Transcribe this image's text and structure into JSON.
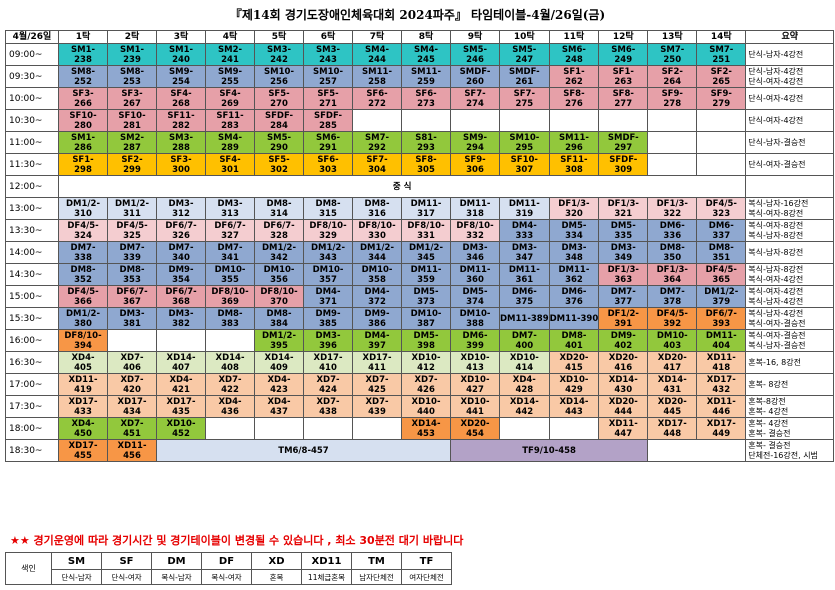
{
  "title": "『제14회 경기도장애인체육대회 2024파주』 타임테이블-4월/26일(금)",
  "header": {
    "date": "4월/26일",
    "tables": [
      "1탁",
      "2탁",
      "3탁",
      "4탁",
      "5탁",
      "6탁",
      "7탁",
      "8탁",
      "9탁",
      "10탁",
      "11탁",
      "12탁",
      "13탁",
      "14탁"
    ],
    "notes": "요약"
  },
  "rows": [
    {
      "time": "09:00~",
      "cells": [
        [
          "SM1-\n238",
          "cyan"
        ],
        [
          "SM1-\n239",
          "cyan"
        ],
        [
          "SM1-\n240",
          "cyan"
        ],
        [
          "SM2-\n241",
          "cyan"
        ],
        [
          "SM3-\n242",
          "cyan"
        ],
        [
          "SM3-\n243",
          "cyan"
        ],
        [
          "SM4-\n244",
          "cyan"
        ],
        [
          "SM4-\n245",
          "cyan"
        ],
        [
          "SM5-\n246",
          "cyan"
        ],
        [
          "SM5-\n247",
          "cyan"
        ],
        [
          "SM6-\n248",
          "cyan"
        ],
        [
          "SM6-\n249",
          "cyan"
        ],
        [
          "SM7-\n250",
          "cyan"
        ],
        [
          "SM7-\n251",
          "cyan"
        ]
      ],
      "note": "단식-남자-4강전"
    },
    {
      "time": "09:30~",
      "cells": [
        [
          "SM8-\n252",
          "blue"
        ],
        [
          "SM8-\n253",
          "blue"
        ],
        [
          "SM9-\n254",
          "blue"
        ],
        [
          "SM9-\n255",
          "blue"
        ],
        [
          "SM10-\n256",
          "blue"
        ],
        [
          "SM10-\n257",
          "blue"
        ],
        [
          "SM11-\n258",
          "blue"
        ],
        [
          "SM11-\n259",
          "blue"
        ],
        [
          "SMDF-\n260",
          "blue"
        ],
        [
          "SMDF-\n261",
          "blue"
        ],
        [
          "SF1-\n262",
          "pink"
        ],
        [
          "SF1-\n263",
          "pink"
        ],
        [
          "SF2-\n264",
          "pink"
        ],
        [
          "SF2-\n265",
          "pink"
        ]
      ],
      "note": "단식-남자-4강전\n단식-여자-4강전"
    },
    {
      "time": "10:00~",
      "cells": [
        [
          "SF3-\n266",
          "pink"
        ],
        [
          "SF3-\n267",
          "pink"
        ],
        [
          "SF4-\n268",
          "pink"
        ],
        [
          "SF4-\n269",
          "pink"
        ],
        [
          "SF5-\n270",
          "pink"
        ],
        [
          "SF5-\n271",
          "pink"
        ],
        [
          "SF6-\n272",
          "pink"
        ],
        [
          "SF6-\n273",
          "pink"
        ],
        [
          "SF7-\n274",
          "pink"
        ],
        [
          "SF7-\n275",
          "pink"
        ],
        [
          "SF8-\n276",
          "pink"
        ],
        [
          "SF8-\n277",
          "pink"
        ],
        [
          "SF9-\n278",
          "pink"
        ],
        [
          "SF9-\n279",
          "pink"
        ]
      ],
      "note": "단식-여자-4강전"
    },
    {
      "time": "10:30~",
      "cells": [
        [
          "SF10-\n280",
          "pink"
        ],
        [
          "SF10-\n281",
          "pink"
        ],
        [
          "SF11-\n282",
          "pink"
        ],
        [
          "SF11-\n283",
          "pink"
        ],
        [
          "SFDF-\n284",
          "pink"
        ],
        [
          "SFDF-\n285",
          "pink"
        ],
        [
          "",
          "white"
        ],
        [
          "",
          "white"
        ],
        [
          "",
          "white"
        ],
        [
          "",
          "white"
        ],
        [
          "",
          "white"
        ],
        [
          "",
          "white"
        ],
        [
          "",
          "white"
        ],
        [
          "",
          "white"
        ]
      ],
      "note": "단식-여자-4강전"
    },
    {
      "time": "11:00~",
      "cells": [
        [
          "SM1-\n286",
          "green"
        ],
        [
          "SM2-\n287",
          "green"
        ],
        [
          "SM3-\n288",
          "green"
        ],
        [
          "SM4-\n289",
          "green"
        ],
        [
          "SM5-\n290",
          "green"
        ],
        [
          "SM6-\n291",
          "green"
        ],
        [
          "SM7-\n292",
          "green"
        ],
        [
          "S81-\n293",
          "green"
        ],
        [
          "SM9-\n294",
          "green"
        ],
        [
          "SM10-\n295",
          "green"
        ],
        [
          "SM11-\n296",
          "green"
        ],
        [
          "SMDF-\n297",
          "green"
        ],
        [
          "",
          "white"
        ],
        [
          "",
          "white"
        ]
      ],
      "note": "단식-남자-결승전"
    },
    {
      "time": "11:30~",
      "cells": [
        [
          "SF1-\n298",
          "yellow"
        ],
        [
          "SF2-\n299",
          "yellow"
        ],
        [
          "SF3-\n300",
          "yellow"
        ],
        [
          "SF4-\n301",
          "yellow"
        ],
        [
          "SF5-\n302",
          "yellow"
        ],
        [
          "SF6-\n303",
          "yellow"
        ],
        [
          "SF7-\n304",
          "yellow"
        ],
        [
          "SF8-\n305",
          "yellow"
        ],
        [
          "SF9-\n306",
          "yellow"
        ],
        [
          "SF10-\n307",
          "yellow"
        ],
        [
          "SF11-\n308",
          "yellow"
        ],
        [
          "SFDF-\n309",
          "yellow"
        ],
        [
          "",
          "white"
        ],
        [
          "",
          "white"
        ]
      ],
      "note": "단식-여자-결승전"
    },
    {
      "time": "12:00~",
      "lunch": "중          식",
      "note": ""
    },
    {
      "time": "13:00~",
      "cells": [
        [
          "DM1/2-\n310",
          "lblue"
        ],
        [
          "DM1/2-\n311",
          "lblue"
        ],
        [
          "DM3-\n312",
          "lblue"
        ],
        [
          "DM3-\n313",
          "lblue"
        ],
        [
          "DM8-\n314",
          "lblue"
        ],
        [
          "DM8-\n315",
          "lblue"
        ],
        [
          "DM8-\n316",
          "lblue"
        ],
        [
          "DM11-\n317",
          "lblue"
        ],
        [
          "DM11-\n318",
          "lblue"
        ],
        [
          "DM11-\n319",
          "lblue"
        ],
        [
          "DF1/3-\n320",
          "lpink"
        ],
        [
          "DF1/3-\n321",
          "lpink"
        ],
        [
          "DF1/3-\n322",
          "lpink"
        ],
        [
          "DF4/5-\n323",
          "lpink"
        ]
      ],
      "note": "복식-남자-16강전\n복식-여자-8강전"
    },
    {
      "time": "13:30~",
      "cells": [
        [
          "DF4/5-\n324",
          "lpink"
        ],
        [
          "DF4/5-\n325",
          "lpink"
        ],
        [
          "DF6/7-\n326",
          "lpink"
        ],
        [
          "DF6/7-\n327",
          "lpink"
        ],
        [
          "DF6/7-\n328",
          "lpink"
        ],
        [
          "DF8/10-\n329",
          "lpink"
        ],
        [
          "DF8/10-\n330",
          "lpink"
        ],
        [
          "DF8/10-\n331",
          "lpink"
        ],
        [
          "DF8/10-\n332",
          "lpink"
        ],
        [
          "DM4-\n333",
          "blue"
        ],
        [
          "DM5-\n334",
          "blue"
        ],
        [
          "DM5-\n335",
          "blue"
        ],
        [
          "DM6-\n336",
          "blue"
        ],
        [
          "DM6-\n337",
          "blue"
        ]
      ],
      "note": "복식-여자-8강전\n복식-남자-8강전"
    },
    {
      "time": "14:00~",
      "cells": [
        [
          "DM7-\n338",
          "blue"
        ],
        [
          "DM7-\n339",
          "blue"
        ],
        [
          "DM7-\n340",
          "blue"
        ],
        [
          "DM7-\n341",
          "blue"
        ],
        [
          "DM1/2-\n342",
          "blue"
        ],
        [
          "DM1/2-\n343",
          "blue"
        ],
        [
          "DM1/2-\n344",
          "blue"
        ],
        [
          "DM1/2-\n345",
          "blue"
        ],
        [
          "DM3-\n346",
          "blue"
        ],
        [
          "DM3-\n347",
          "blue"
        ],
        [
          "DM3-\n348",
          "blue"
        ],
        [
          "DM3-\n349",
          "blue"
        ],
        [
          "DM8-\n350",
          "blue"
        ],
        [
          "DM8-\n351",
          "blue"
        ]
      ],
      "note": "복식-남자-8강전"
    },
    {
      "time": "14:30~",
      "cells": [
        [
          "DM8-\n352",
          "blue"
        ],
        [
          "DM8-\n353",
          "blue"
        ],
        [
          "DM9-\n354",
          "blue"
        ],
        [
          "DM10-\n355",
          "blue"
        ],
        [
          "DM10-\n356",
          "blue"
        ],
        [
          "DM10-\n357",
          "blue"
        ],
        [
          "DM10-\n358",
          "blue"
        ],
        [
          "DM11-\n359",
          "blue"
        ],
        [
          "DM11-\n360",
          "blue"
        ],
        [
          "DM11-\n361",
          "blue"
        ],
        [
          "DM11-\n362",
          "blue"
        ],
        [
          "DF1/3-\n363",
          "pink"
        ],
        [
          "DF1/3-\n364",
          "pink"
        ],
        [
          "DF4/5-\n365",
          "pink"
        ]
      ],
      "note": "복식-남자-8강전\n복식-여자-4강전"
    },
    {
      "time": "15:00~",
      "cells": [
        [
          "DF4/5-\n366",
          "pink"
        ],
        [
          "DF6/7-\n367",
          "pink"
        ],
        [
          "DF6/7-\n368",
          "pink"
        ],
        [
          "DF8/10-\n369",
          "pink"
        ],
        [
          "DF8/10-\n370",
          "pink"
        ],
        [
          "DM4-\n371",
          "blue"
        ],
        [
          "DM4-\n372",
          "blue"
        ],
        [
          "DM5-\n373",
          "blue"
        ],
        [
          "DM5-\n374",
          "blue"
        ],
        [
          "DM6-\n375",
          "blue"
        ],
        [
          "DM6-\n376",
          "blue"
        ],
        [
          "DM7-\n377",
          "blue"
        ],
        [
          "DM7-\n378",
          "blue"
        ],
        [
          "DM1/2-\n379",
          "blue"
        ]
      ],
      "note": "복식-여자-4강전\n복식-남자-4강전"
    },
    {
      "time": "15:30~",
      "cells": [
        [
          "DM1/2-\n380",
          "blue"
        ],
        [
          "DM3-\n381",
          "blue"
        ],
        [
          "DM3-\n382",
          "blue"
        ],
        [
          "DM8-\n383",
          "blue"
        ],
        [
          "DM8-\n384",
          "blue"
        ],
        [
          "DM9-\n385",
          "blue"
        ],
        [
          "DM9-\n386",
          "blue"
        ],
        [
          "DM10-\n387",
          "blue"
        ],
        [
          "DM10-\n388",
          "blue"
        ],
        [
          "DM11-389",
          "blue"
        ],
        [
          "DM11-390",
          "blue"
        ],
        [
          "DF1/2-\n391",
          "orange"
        ],
        [
          "DF4/5-\n392",
          "orange"
        ],
        [
          "DF6/7-\n393",
          "orange"
        ]
      ],
      "note": "복식-남자-4강전\n복식-여자-결승전"
    },
    {
      "time": "16:00~",
      "cells": [
        [
          "DF8/10-\n394",
          "orange"
        ],
        [
          "",
          "white"
        ],
        [
          "",
          "white"
        ],
        [
          "",
          "white"
        ],
        [
          "DM1/2-\n395",
          "green"
        ],
        [
          "DM3-\n396",
          "green"
        ],
        [
          "DM4-\n397",
          "green"
        ],
        [
          "DM5-\n398",
          "green"
        ],
        [
          "DM6-\n399",
          "green"
        ],
        [
          "DM7-\n400",
          "green"
        ],
        [
          "DM8-\n401",
          "green"
        ],
        [
          "DM9-\n402",
          "green"
        ],
        [
          "DM10-\n403",
          "green"
        ],
        [
          "DM11-\n404",
          "green"
        ]
      ],
      "note": "복식-여자-결승전\n복식-남자-결승전"
    },
    {
      "time": "16:30~",
      "cells": [
        [
          "XD4-\n405",
          "lgreen"
        ],
        [
          "XD7-\n406",
          "lgreen"
        ],
        [
          "XD14-\n407",
          "lgreen"
        ],
        [
          "XD14-\n408",
          "lgreen"
        ],
        [
          "XD14-\n409",
          "lgreen"
        ],
        [
          "XD17-\n410",
          "lgreen"
        ],
        [
          "XD17-\n411",
          "lgreen"
        ],
        [
          "XD10-\n412",
          "lgreen"
        ],
        [
          "XD10-\n413",
          "lgreen"
        ],
        [
          "XD10-\n414",
          "lgreen"
        ],
        [
          "XD20-\n415",
          "lorange"
        ],
        [
          "XD20-\n416",
          "lorange"
        ],
        [
          "XD20-\n417",
          "lorange"
        ],
        [
          "XD11-\n418",
          "lorange"
        ]
      ],
      "note": "혼복-16, 8강전"
    },
    {
      "time": "17:00~",
      "cells": [
        [
          "XD11-\n419",
          "lorange"
        ],
        [
          "XD7-\n420",
          "lorange"
        ],
        [
          "XD4-\n421",
          "lorange"
        ],
        [
          "XD7-\n422",
          "lorange"
        ],
        [
          "XD4-\n423",
          "lorange"
        ],
        [
          "XD7-\n424",
          "lorange"
        ],
        [
          "XD7-\n425",
          "lorange"
        ],
        [
          "XD7-\n426",
          "lorange"
        ],
        [
          "XD10-\n427",
          "lorange"
        ],
        [
          "XD4-\n428",
          "lorange"
        ],
        [
          "XD10-\n429",
          "lorange"
        ],
        [
          "XD14-\n430",
          "lorange"
        ],
        [
          "XD14-\n431",
          "lorange"
        ],
        [
          "XD17-\n432",
          "lorange"
        ]
      ],
      "note": "혼복- 8강전"
    },
    {
      "time": "17:30~",
      "cells": [
        [
          "XD17-\n433",
          "lorange"
        ],
        [
          "XD17-\n434",
          "lorange"
        ],
        [
          "XD17-\n435",
          "lorange"
        ],
        [
          "XD4-\n436",
          "lorange"
        ],
        [
          "XD4-\n437",
          "lorange"
        ],
        [
          "XD7-\n438",
          "lorange"
        ],
        [
          "XD7-\n439",
          "lorange"
        ],
        [
          "XD10-\n440",
          "lorange"
        ],
        [
          "XD10-\n441",
          "lorange"
        ],
        [
          "XD14-\n442",
          "lorange"
        ],
        [
          "XD14-\n443",
          "lorange"
        ],
        [
          "XD20-\n444",
          "lorange"
        ],
        [
          "XD20-\n445",
          "lorange"
        ],
        [
          "XD11-\n446",
          "lorange"
        ]
      ],
      "note": "혼복-8강전\n혼복- 4강전"
    },
    {
      "time": "18:00~",
      "cells": [
        [
          "XD4-\n450",
          "green"
        ],
        [
          "XD7-\n451",
          "green"
        ],
        [
          "XD10-\n452",
          "green"
        ],
        [
          "",
          "white"
        ],
        [
          "",
          "white"
        ],
        [
          "",
          "white"
        ],
        [
          "",
          "white"
        ],
        [
          "XD14-\n453",
          "orange"
        ],
        [
          "XD20-\n454",
          "orange"
        ],
        [
          "",
          "white"
        ],
        [
          "",
          "white"
        ],
        [
          "XD11-\n447",
          "lorange"
        ],
        [
          "XD17-\n448",
          "lorange"
        ],
        [
          "XD17-\n449",
          "lorange"
        ]
      ],
      "note": "혼복- 4강전\n혼복- 결승전"
    },
    {
      "time": "18:30~",
      "cells": [
        [
          "XD17-\n455",
          "orange"
        ],
        [
          "XD11-\n456",
          "orange"
        ]
      ],
      "tm": "TM6/8-457",
      "tf": "TF9/10-458",
      "note": "혼복- 결승전\n단체전-16강전, 시범"
    }
  ],
  "notice": "★★ 경기운영에 따라 경기시간 및 경기테이블이 변경될 수 있습니다 , 최소 30분전 대기 바랍니다",
  "legend": {
    "header": "색인",
    "codes": [
      "SM",
      "SF",
      "DM",
      "DF",
      "XD",
      "XD11",
      "TM",
      "TF"
    ],
    "descriptions": [
      "단식-남자",
      "단식-여자",
      "복식-남자",
      "복식-여자",
      "혼복",
      "11체급혼복",
      "남자단체전",
      "여자단체전"
    ]
  }
}
